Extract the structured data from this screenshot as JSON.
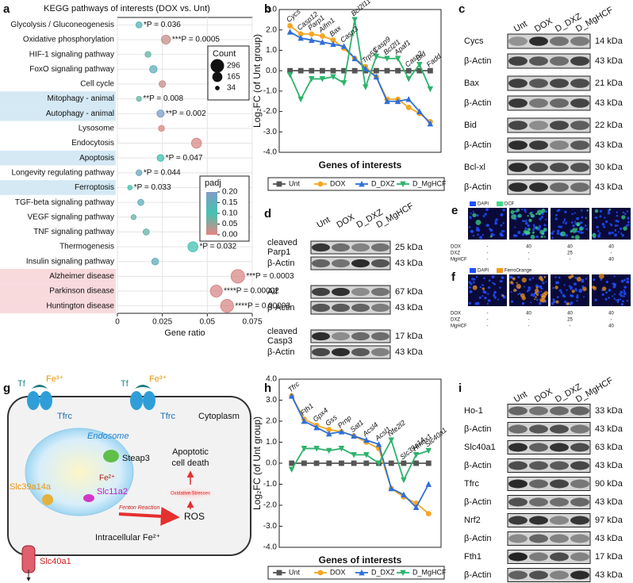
{
  "chart_data": [
    {
      "type": "bubble",
      "panel": "a",
      "title": "KEGG pathways of interests (DOX vs. Unt)",
      "xlabel": "Gene ratio",
      "categories": [
        "Glycolysis / Gluconeogenesis",
        "Oxidative phosphorylation",
        "HIF-1 signaling pathway",
        "FoxO signaling pathway",
        "Cell cycle",
        "Mitophagy - animal",
        "Autophagy - animal",
        "Lysosome",
        "Endocytosis",
        "Apoptosis",
        "Longevity regulating pathway",
        "Ferroptosis",
        "TGF-beta signaling pathway",
        "VEGF signaling pathway",
        "TNF signaling pathway",
        "Thermogenesis",
        "Insulin signaling pathway",
        "Alzheimer disease",
        "Parkinson disease",
        "Huntington disease"
      ],
      "values": [
        0.012,
        0.027,
        0.017,
        0.02,
        0.025,
        0.012,
        0.024,
        0.0245,
        0.044,
        0.024,
        0.012,
        0.007,
        0.013,
        0.009,
        0.016,
        0.042,
        0.021,
        0.067,
        0.055,
        0.061
      ],
      "sizes": [
        60,
        130,
        55,
        90,
        70,
        40,
        85,
        55,
        160,
        75,
        55,
        34,
        60,
        40,
        60,
        160,
        75,
        296,
        230,
        270
      ],
      "padj": [
        0.13,
        0.02,
        0.08,
        0.15,
        0.02,
        0.08,
        0.2,
        0.01,
        0.01,
        0.1,
        0.17,
        0.1,
        0.15,
        0.08,
        0.08,
        0.1,
        0.15,
        0.01,
        0.01,
        0.01
      ],
      "annotations": [
        "*P = 0.036",
        "***P = 0.0005",
        null,
        null,
        null,
        "**P = 0.008",
        "**P = 0.002",
        null,
        null,
        "*P = 0.047",
        "*P = 0.044",
        "*P = 0.033",
        null,
        null,
        null,
        "*P = 0.032",
        null,
        "***P = 0.0003",
        "****P = 0.00002",
        "****P = 0.00003"
      ],
      "xlim": [
        0,
        0.075
      ],
      "xticks": [
        0,
        0.025,
        0.05,
        0.075
      ],
      "grid": true,
      "size_legend": {
        "title": "Count",
        "values": [
          296,
          165,
          34
        ]
      },
      "color_legend": {
        "title": "padj",
        "clim": [
          0,
          0.2
        ],
        "colors": [
          "#e88282",
          "#45c2b1",
          "#7f9cc7"
        ],
        "ticks": [
          {
            "value": 0.2,
            "label": "0.20"
          },
          {
            "value": 0.15,
            "label": "0.15"
          },
          {
            "value": 0.1,
            "label": "0.10"
          },
          {
            "value": 0.05,
            "label": "0.05"
          },
          {
            "value": 0,
            "label": "0.00"
          }
        ]
      },
      "bands": [
        {
          "color": "#d4e9f4",
          "rows": [
            5,
            6,
            9,
            11
          ]
        },
        {
          "color": "#f8dadd",
          "rows": [
            17,
            18,
            19
          ]
        }
      ]
    },
    {
      "type": "line",
      "panel": "b",
      "ylabel": "Log₂FC (of Unt group)",
      "xlabel": "Genes of interests",
      "categories": [
        "Cycs",
        "Casp12",
        "Parp1",
        "Aifm1",
        "Bax",
        "Casp3",
        "Bcl2l11",
        "Trp53",
        "Casp9",
        "Bcl2l1",
        "Apaf1",
        "Casp2",
        "Bid",
        "Fadd"
      ],
      "ylim": [
        -4,
        3
      ],
      "yticks": [
        {
          "value": 3,
          "label": "3.0"
        },
        {
          "value": 2,
          "label": "2.0"
        },
        {
          "value": 1,
          "label": "1.0"
        },
        {
          "value": 0,
          "label": "0.0"
        },
        {
          "value": -1,
          "label": "-1.0"
        },
        {
          "value": -2,
          "label": "-2.0"
        },
        {
          "value": -3,
          "label": "-3.0"
        },
        {
          "value": -4,
          "label": "-4.0"
        }
      ],
      "series": [
        {
          "name": "Unt",
          "color": "#555555",
          "marker": "square",
          "values": [
            0,
            0,
            0,
            0,
            0,
            0,
            0,
            0,
            0,
            0,
            0,
            0,
            0,
            0
          ]
        },
        {
          "name": "DOX",
          "color": "#f5a623",
          "marker": "circle",
          "values": [
            2.2,
            1.8,
            1.8,
            1.7,
            1.5,
            1.1,
            0.6,
            0.2,
            -0.3,
            -1.4,
            -1.4,
            -1.8,
            -2.1,
            -2.5
          ]
        },
        {
          "name": "D_DXZ",
          "color": "#2f6fd6",
          "marker": "triangle-up",
          "values": [
            1.9,
            1.6,
            1.5,
            1.4,
            1.3,
            1.2,
            0.6,
            0.1,
            -0.3,
            -1.5,
            -1.5,
            -1.4,
            -2.0,
            -2.6
          ]
        },
        {
          "name": "D_MgHCF",
          "color": "#2db36b",
          "marker": "triangle-down",
          "values": [
            -0.2,
            -1.4,
            -0.4,
            -0.4,
            -0.3,
            -0.6,
            2.5,
            -0.8,
            0.7,
            0.6,
            0.6,
            -0.4,
            0.3,
            -0.9
          ]
        }
      ]
    },
    {
      "type": "line",
      "panel": "h",
      "ylabel": "Log₂FC (of Unt group)",
      "xlabel": "Genes of interests",
      "categories": [
        "Tfrc",
        "Fth1",
        "Gpx4",
        "Gss",
        "Prnp",
        "Sat1",
        "Acsl4",
        "Acsl1",
        "Nfe2l2",
        "Slc39a14",
        "Hmox1",
        "Slc40a1"
      ],
      "ylim": [
        -4,
        4
      ],
      "yticks": [
        {
          "value": 4,
          "label": "4.0"
        },
        {
          "value": 3,
          "label": "3.0"
        },
        {
          "value": 2,
          "label": "2.0"
        },
        {
          "value": 1,
          "label": "1.0"
        },
        {
          "value": 0,
          "label": "0.0"
        },
        {
          "value": -1,
          "label": "-1.0"
        },
        {
          "value": -2,
          "label": "-2.0"
        },
        {
          "value": -3,
          "label": "-3.0"
        },
        {
          "value": -4,
          "label": "-4.0"
        }
      ],
      "series": [
        {
          "name": "Unt",
          "color": "#555555",
          "marker": "square",
          "values": [
            0,
            0,
            0,
            0,
            0,
            0,
            0,
            0,
            0,
            0,
            0,
            0
          ]
        },
        {
          "name": "DOX",
          "color": "#f5a623",
          "marker": "circle",
          "values": [
            3.2,
            2.1,
            1.8,
            1.6,
            1.5,
            1.3,
            1.0,
            0.7,
            -1.2,
            -1.6,
            -1.9,
            -2.4
          ]
        },
        {
          "name": "D_DXZ",
          "color": "#2f6fd6",
          "marker": "triangle-up",
          "values": [
            3.2,
            2.0,
            1.7,
            1.4,
            1.5,
            1.3,
            1.1,
            0.9,
            -1.2,
            -1.5,
            -2.1,
            -1.0
          ]
        },
        {
          "name": "D_MgHCF",
          "color": "#2db36b",
          "marker": "triangle-down",
          "values": [
            -0.3,
            0.7,
            0.7,
            0.6,
            0.7,
            0.4,
            0.4,
            0.0,
            1.1,
            -0.8,
            0.4,
            0.6
          ]
        }
      ]
    }
  ],
  "blots": [
    {
      "panel": "c",
      "lanes": [
        "Unt",
        "DOX",
        "D_DXZ",
        "D_MgHCF"
      ],
      "rows": [
        {
          "label": "Cycs",
          "size": "14 kDa"
        },
        {
          "label": "β-Actin",
          "size": "43 kDa"
        },
        {
          "label": "Bax",
          "size": "21 kDa"
        },
        {
          "label": "β-Actin",
          "size": "43 kDa"
        },
        {
          "label": "Bid",
          "size": "22 kDa"
        },
        {
          "label": "β-Actin",
          "size": "43 kDa"
        },
        {
          "label": "Bcl-xl",
          "size": "30 kDa"
        },
        {
          "label": "β-Actin",
          "size": "43 kDa"
        }
      ]
    },
    {
      "panel": "d",
      "lanes": [
        "Unt",
        "DOX",
        "D_DXZ",
        "D_MgHCF"
      ],
      "rows": [
        {
          "label": [
            "cleaved",
            "Parp1"
          ],
          "size": "25 kDa"
        },
        {
          "label": "β-Actin",
          "size": "43 kDa"
        },
        {
          "label": "Aif",
          "size": "67 kDa"
        },
        {
          "label": "β-Actin",
          "size": "43 kDa"
        },
        {
          "label": [
            "cleaved",
            "Casp3"
          ],
          "size": "17 kDa"
        },
        {
          "label": "β-Actin",
          "size": "43 kDa"
        }
      ]
    },
    {
      "panel": "i",
      "lanes": [
        "Unt",
        "DOX",
        "D_DXZ",
        "D_MgHCF"
      ],
      "rows": [
        {
          "label": "Ho-1",
          "size": "33 kDa"
        },
        {
          "label": "β-Actin",
          "size": "43 kDa"
        },
        {
          "label": "Slc40a1",
          "size": "63 kDa"
        },
        {
          "label": "β-Actin",
          "size": "43 kDa"
        },
        {
          "label": "Tfrc",
          "size": "90 kDa"
        },
        {
          "label": "β-Actin",
          "size": "43 kDa"
        },
        {
          "label": "Nrf2",
          "size": "97 kDa"
        },
        {
          "label": "β-Actin",
          "size": "43 kDa"
        },
        {
          "label": "Fth1",
          "size": "17 kDa"
        },
        {
          "label": "β-Actin",
          "size": "43 kDa"
        }
      ]
    }
  ],
  "imaging": [
    {
      "panel": "e",
      "stains": [
        "DAPI",
        "DCF"
      ],
      "stain_colors": [
        "#1f4fff",
        "#3fdc8a"
      ],
      "treatments": [
        "DOX",
        "DXZ",
        "MgHCF"
      ],
      "doses": [
        [
          "-",
          "-",
          "-"
        ],
        [
          40,
          "-",
          "-"
        ],
        [
          40,
          25,
          "-"
        ],
        [
          40,
          "-",
          40
        ]
      ]
    },
    {
      "panel": "f",
      "stains": [
        "DAPI",
        "FerroOrange"
      ],
      "stain_colors": [
        "#1f4fff",
        "#f39a1e"
      ],
      "treatments": [
        "DOX",
        "DXZ",
        "MgHCF"
      ],
      "doses": [
        [
          "-",
          "-",
          "-"
        ],
        [
          40,
          "-",
          "-"
        ],
        [
          40,
          25,
          "-"
        ],
        [
          40,
          "-",
          40
        ]
      ]
    }
  ],
  "diagram": {
    "panel": "g",
    "tf": "Tf",
    "fe3": "Fe³⁺",
    "tfrc": "Tfrc",
    "cytoplasm": "Cytoplasm",
    "endosome": "Endosome",
    "steap3": "Steap3",
    "fe2": "Fe²⁺",
    "apoptotic": [
      "Apoptotic",
      "cell death"
    ],
    "oxidative": "Oxidative Stresses",
    "slc39a14a": "Slc39a14a",
    "slc11a2": "Slc11a2",
    "fenton": "Fenton Reaction",
    "ros": "ROS",
    "intracellular": "Intracellular Fe²⁺",
    "slc40a1": "Slc40a1"
  }
}
